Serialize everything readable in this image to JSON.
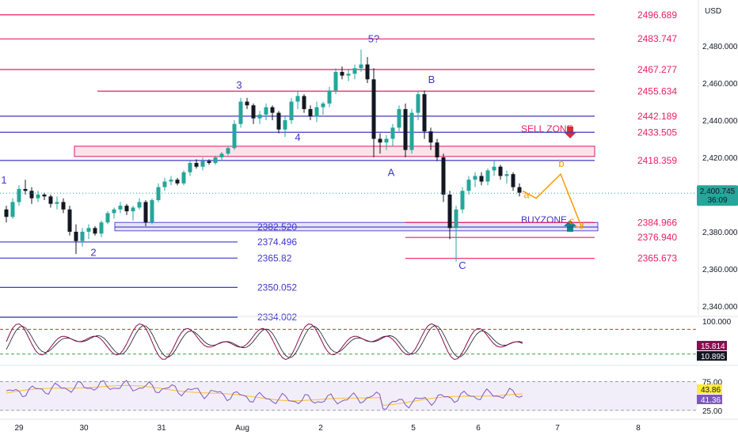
{
  "chart_data": {
    "type": "candlestick",
    "currency": "USD",
    "price_axis": {
      "min": 2330,
      "max": 2500,
      "ticks": [
        "2,480.000",
        "2,460.000",
        "2,440.000",
        "2,420.000",
        "2,380.000",
        "2,360.000",
        "2,340.000"
      ],
      "tick_values": [
        2480,
        2460,
        2440,
        2420,
        2380,
        2360,
        2340
      ]
    },
    "time_axis": {
      "labels": [
        "29",
        "30",
        "31",
        "Aug",
        "2",
        "5",
        "6",
        "7",
        "8"
      ]
    },
    "current_price": {
      "value": 2400.745,
      "label": "2,400.745",
      "countdown": "36:09"
    },
    "price_levels": [
      {
        "value": 2496.689,
        "label": "2496.689",
        "color": "#e91e63"
      },
      {
        "value": 2483.747,
        "label": "2483.747",
        "color": "#e91e63"
      },
      {
        "value": 2467.277,
        "label": "2467.277",
        "color": "#e91e63"
      },
      {
        "value": 2455.634,
        "label": "2455.634",
        "color": "#e91e63"
      },
      {
        "value": 2442.189,
        "label": "2442.189",
        "color": "#e91e63"
      },
      {
        "value": 2433.505,
        "label": "2433.505",
        "color": "#e91e63"
      },
      {
        "value": 2418.359,
        "label": "2418.359",
        "color": "#e91e63"
      },
      {
        "value": 2384.966,
        "label": "2384.966",
        "color": "#e91e63"
      },
      {
        "value": 2376.94,
        "label": "2376.940",
        "color": "#e91e63"
      },
      {
        "value": 2365.673,
        "label": "2365.673",
        "color": "#e91e63"
      },
      {
        "value": 2382.52,
        "label": "2382.520",
        "color": "#3f37c9"
      },
      {
        "value": 2374.496,
        "label": "2374.496",
        "color": "#3f37c9"
      },
      {
        "value": 2365.82,
        "label": "2365.82",
        "color": "#3f37c9"
      },
      {
        "value": 2350.052,
        "label": "2350.052",
        "color": "#3f37c9"
      },
      {
        "value": 2334.002,
        "label": "2334.002",
        "color": "#3f37c9"
      }
    ],
    "zones": [
      {
        "label": "SELL ZONE",
        "low": 2420.5,
        "high": 2426
      },
      {
        "label": "BUYZONE",
        "low": 2380.5,
        "high": 2385
      }
    ],
    "wave_labels": [
      {
        "text": "1",
        "price": 2406
      },
      {
        "text": "2",
        "price": 2367
      },
      {
        "text": "3",
        "price": 2457
      },
      {
        "text": "4",
        "price": 2429
      },
      {
        "text": "5?",
        "price": 2482
      },
      {
        "text": "A",
        "price": 2410
      },
      {
        "text": "B",
        "price": 2460
      },
      {
        "text": "C",
        "price": 2360
      }
    ],
    "projection_labels": [
      "a",
      "b",
      "c"
    ],
    "projection_prices": [
      2402,
      2398,
      2411,
      2382
    ],
    "candles": [
      [
        2392,
        2394,
        2385,
        2388
      ],
      [
        2388,
        2398,
        2387,
        2396
      ],
      [
        2396,
        2405,
        2394,
        2403
      ],
      [
        2403,
        2408,
        2400,
        2402
      ],
      [
        2402,
        2404,
        2395,
        2398
      ],
      [
        2398,
        2402,
        2396,
        2400
      ],
      [
        2400,
        2401,
        2397,
        2399
      ],
      [
        2399,
        2400,
        2393,
        2395
      ],
      [
        2395,
        2399,
        2392,
        2396
      ],
      [
        2396,
        2398,
        2390,
        2392
      ],
      [
        2392,
        2394,
        2378,
        2380
      ],
      [
        2380,
        2384,
        2368,
        2375
      ],
      [
        2375,
        2382,
        2372,
        2380
      ],
      [
        2380,
        2384,
        2376,
        2382
      ],
      [
        2382,
        2383,
        2378,
        2379
      ],
      [
        2379,
        2386,
        2377,
        2385
      ],
      [
        2385,
        2391,
        2384,
        2390
      ],
      [
        2390,
        2393,
        2387,
        2392
      ],
      [
        2392,
        2396,
        2390,
        2394
      ],
      [
        2394,
        2395,
        2389,
        2391
      ],
      [
        2391,
        2394,
        2386,
        2393
      ],
      [
        2393,
        2398,
        2392,
        2396
      ],
      [
        2396,
        2397,
        2383,
        2385
      ],
      [
        2385,
        2398,
        2384,
        2397
      ],
      [
        2397,
        2406,
        2396,
        2404
      ],
      [
        2404,
        2409,
        2402,
        2407
      ],
      [
        2407,
        2410,
        2405,
        2408
      ],
      [
        2408,
        2409,
        2405,
        2406
      ],
      [
        2406,
        2413,
        2405,
        2412
      ],
      [
        2412,
        2418,
        2410,
        2417
      ],
      [
        2417,
        2419,
        2414,
        2415
      ],
      [
        2415,
        2420,
        2413,
        2418
      ],
      [
        2418,
        2419,
        2416,
        2417
      ],
      [
        2417,
        2421,
        2416,
        2420
      ],
      [
        2420,
        2423,
        2418,
        2422
      ],
      [
        2422,
        2426,
        2421,
        2425
      ],
      [
        2425,
        2440,
        2424,
        2438
      ],
      [
        2438,
        2452,
        2436,
        2450
      ],
      [
        2450,
        2452,
        2446,
        2448
      ],
      [
        2448,
        2449,
        2438,
        2441
      ],
      [
        2441,
        2445,
        2438,
        2443
      ],
      [
        2443,
        2449,
        2440,
        2447
      ],
      [
        2447,
        2448,
        2440,
        2444
      ],
      [
        2444,
        2445,
        2433,
        2435
      ],
      [
        2435,
        2442,
        2431,
        2440
      ],
      [
        2440,
        2452,
        2438,
        2450
      ],
      [
        2450,
        2456,
        2446,
        2453
      ],
      [
        2453,
        2454,
        2444,
        2446
      ],
      [
        2446,
        2448,
        2440,
        2442
      ],
      [
        2442,
        2450,
        2439,
        2447
      ],
      [
        2447,
        2450,
        2443,
        2449
      ],
      [
        2449,
        2458,
        2447,
        2456
      ],
      [
        2456,
        2468,
        2454,
        2466
      ],
      [
        2466,
        2469,
        2462,
        2464
      ],
      [
        2464,
        2467,
        2461,
        2465
      ],
      [
        2465,
        2470,
        2462,
        2468
      ],
      [
        2468,
        2478,
        2466,
        2470
      ],
      [
        2470,
        2474,
        2460,
        2462
      ],
      [
        2462,
        2468,
        2420,
        2430
      ],
      [
        2430,
        2433,
        2422,
        2428
      ],
      [
        2428,
        2432,
        2424,
        2430
      ],
      [
        2430,
        2438,
        2426,
        2436
      ],
      [
        2436,
        2448,
        2434,
        2446
      ],
      [
        2446,
        2449,
        2420,
        2424
      ],
      [
        2424,
        2446,
        2422,
        2444
      ],
      [
        2444,
        2456,
        2440,
        2454
      ],
      [
        2454,
        2456,
        2430,
        2434
      ],
      [
        2434,
        2436,
        2424,
        2428
      ],
      [
        2428,
        2430,
        2418,
        2420
      ],
      [
        2420,
        2422,
        2396,
        2400
      ],
      [
        2400,
        2402,
        2376,
        2382
      ],
      [
        2382,
        2394,
        2364,
        2392
      ],
      [
        2392,
        2404,
        2390,
        2402
      ],
      [
        2402,
        2410,
        2400,
        2408
      ],
      [
        2408,
        2412,
        2404,
        2410
      ],
      [
        2410,
        2412,
        2405,
        2407
      ],
      [
        2407,
        2414,
        2405,
        2413
      ],
      [
        2413,
        2418,
        2410,
        2415
      ],
      [
        2415,
        2416,
        2408,
        2410
      ],
      [
        2410,
        2413,
        2406,
        2411
      ],
      [
        2411,
        2412,
        2402,
        2404
      ],
      [
        2404,
        2406,
        2399,
        2401
      ]
    ],
    "stochastic": {
      "axis_labels": [
        "100.000"
      ],
      "k": {
        "value": 15.814,
        "label": "15.814",
        "color": "#880e4f"
      },
      "d": {
        "value": 10.895,
        "label": "10.895",
        "color": "#131722"
      }
    },
    "rsi": {
      "axis_labels": [
        "75.00",
        "25.00"
      ],
      "rsi": {
        "value": 41.36,
        "label": "41.36",
        "color": "#7e57c2"
      },
      "ma": {
        "value": 43.86,
        "label": "43.86",
        "color": "#ffeb3b"
      }
    }
  }
}
